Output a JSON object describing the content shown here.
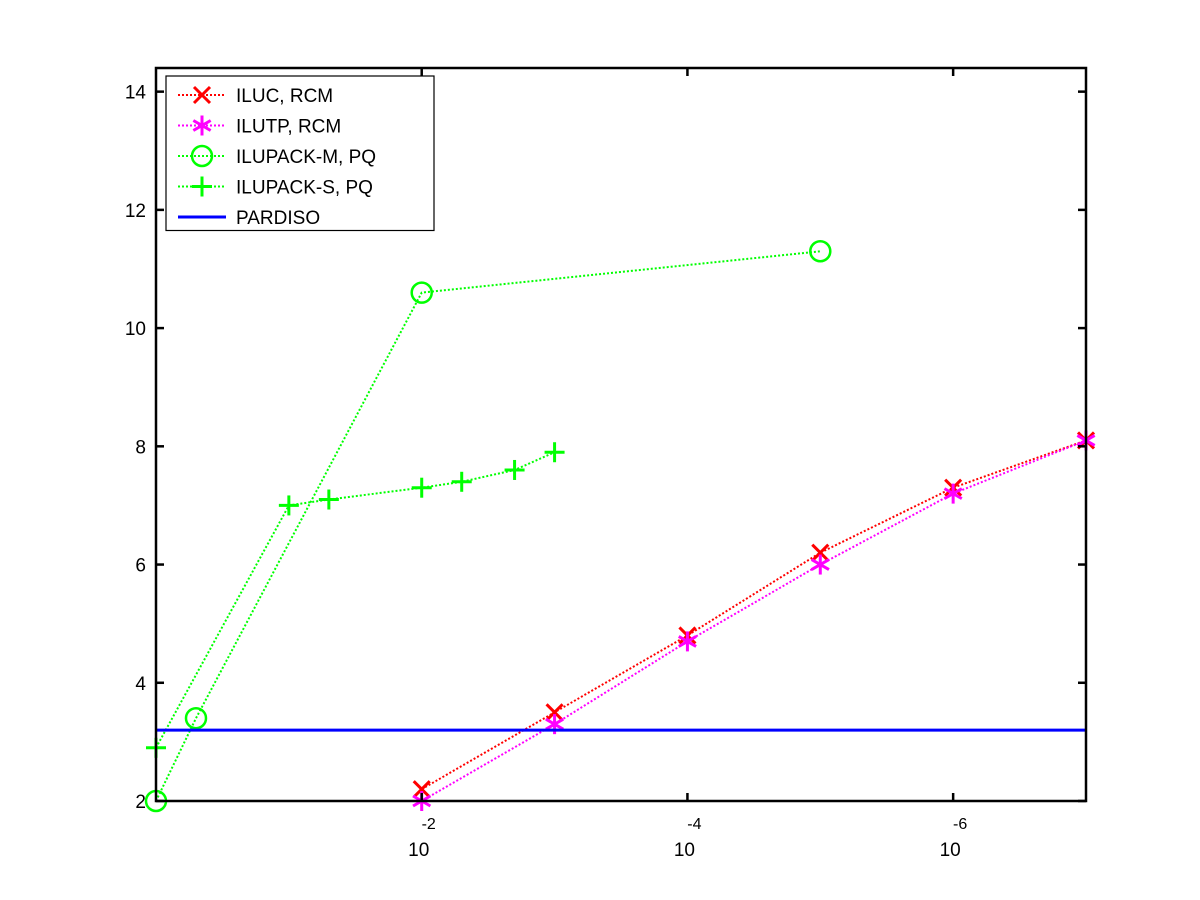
{
  "chart_data": {
    "type": "line",
    "title": "",
    "xlabel": "",
    "ylabel": "",
    "x_scale": "log",
    "x_direction": "decreasing",
    "xlim": [
      1,
      1e-07
    ],
    "ylim": [
      2,
      14.4
    ],
    "x_ticks": [
      {
        "value": 0.01,
        "base": "10",
        "exponent": "-2"
      },
      {
        "value": 0.0001,
        "base": "10",
        "exponent": "-4"
      },
      {
        "value": 1e-06,
        "base": "10",
        "exponent": "-6"
      }
    ],
    "y_ticks": [
      {
        "value": 2,
        "label": "2"
      },
      {
        "value": 4,
        "label": "4"
      },
      {
        "value": 6,
        "label": "6"
      },
      {
        "value": 8,
        "label": "8"
      },
      {
        "value": 10,
        "label": "10"
      },
      {
        "value": 12,
        "label": "12"
      },
      {
        "value": 14,
        "label": "14"
      }
    ],
    "grid": false,
    "legend_position": "top-left",
    "series": [
      {
        "name": "ILUC, RCM",
        "color": "#ff0000",
        "marker": "x",
        "line_style": "dotted",
        "x": [
          0.01,
          0.001,
          0.0001,
          1e-05,
          1e-06,
          1e-07
        ],
        "y": [
          2.2,
          3.5,
          4.8,
          6.2,
          7.3,
          8.1
        ]
      },
      {
        "name": "ILUTP, RCM",
        "color": "#ff00ff",
        "marker": "asterisk",
        "line_style": "dotted",
        "x": [
          0.01,
          0.001,
          0.0001,
          1e-05,
          1e-06,
          1e-07
        ],
        "y": [
          2.0,
          3.3,
          4.7,
          6.0,
          7.2,
          8.1
        ]
      },
      {
        "name": "ILUPACK-M, PQ",
        "color": "#00ff00",
        "marker": "circle",
        "line_style": "dotted",
        "x": [
          1,
          0.5,
          0.01,
          1e-05
        ],
        "y": [
          2.0,
          3.4,
          10.6,
          11.3
        ]
      },
      {
        "name": "ILUPACK-S, PQ",
        "color": "#00ff00",
        "marker": "plus",
        "line_style": "dotted",
        "x": [
          1,
          0.1,
          0.05,
          0.01,
          0.005,
          0.002,
          0.001
        ],
        "y": [
          2.9,
          7.0,
          7.1,
          7.3,
          7.4,
          7.6,
          7.9
        ]
      },
      {
        "name": "PARDISO",
        "color": "#0000ff",
        "marker": "none",
        "line_style": "solid",
        "x": [
          1,
          1e-07
        ],
        "y": [
          3.2,
          3.2
        ]
      }
    ]
  }
}
